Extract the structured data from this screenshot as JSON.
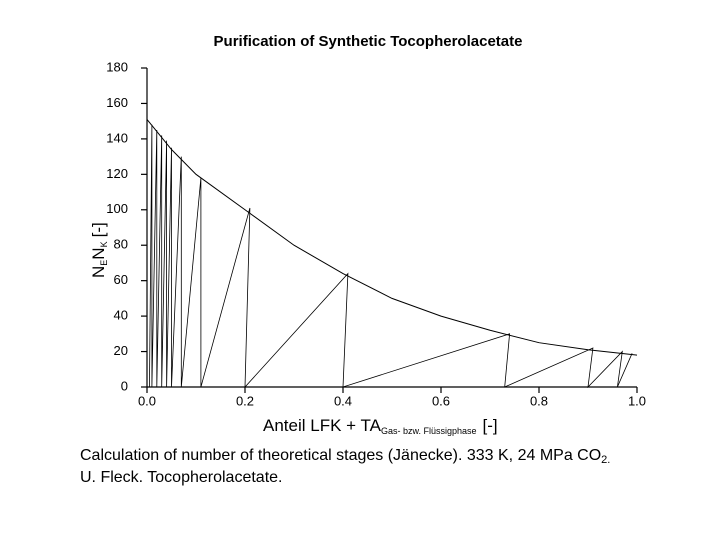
{
  "chart_data": {
    "type": "line",
    "title": "Purification of Synthetic Tocopherolacetate",
    "xlabel": {
      "main": "Anteil LFK + TA",
      "sub": "Gas- bzw. Flüssigphase",
      "unit": "[-]"
    },
    "ylabel": {
      "n1": "N",
      "s1": "E",
      "n2": "N",
      "s2": "K",
      "unit": "[-]"
    },
    "caption": {
      "line1": "Calculation of number of theoretical stages (Jänecke). 333 K, 24 MPa CO",
      "line1_sub": "2.",
      "line2": "U. Fleck. Tocopherolacetate."
    },
    "xlim": [
      0,
      1
    ],
    "ylim": [
      0,
      180
    ],
    "xticks": [
      {
        "value": 0,
        "label": "0.0"
      },
      {
        "value": 0.2,
        "label": "0.2"
      },
      {
        "value": 0.4,
        "label": "0.4"
      },
      {
        "value": 0.6,
        "label": "0.6"
      },
      {
        "value": 0.8,
        "label": "0.8"
      },
      {
        "value": 1,
        "label": "1.0"
      }
    ],
    "yticks": [
      0,
      20,
      40,
      60,
      80,
      100,
      120,
      140,
      160,
      180
    ],
    "grid": false,
    "series": [
      {
        "color": "#000000",
        "x": [
          0,
          0.05,
          0.1,
          0.2,
          0.3,
          0.4,
          0.5,
          0.6,
          0.7,
          0.8,
          0.9,
          1.0
        ],
        "values": [
          151,
          134,
          120,
          100,
          80,
          64,
          50,
          40,
          32,
          25,
          21,
          18
        ]
      },
      {
        "color": "#000000",
        "x": [
          0.005,
          0.01,
          0.01,
          0.02,
          0.02,
          0.03,
          0.03,
          0.04,
          0.04,
          0.05,
          0.05,
          0.07,
          0.07,
          0.11,
          0.11,
          0.21,
          0.2,
          0.41,
          0.4,
          0.74,
          0.73,
          0.91,
          0.9,
          0.97,
          0.96,
          0.99
        ],
        "values": [
          0,
          148,
          0,
          145,
          0,
          142,
          0,
          139,
          0,
          135,
          0,
          130,
          0,
          118,
          0,
          101,
          0,
          64,
          0,
          30,
          0,
          22,
          0,
          20,
          0,
          19
        ]
      }
    ]
  }
}
